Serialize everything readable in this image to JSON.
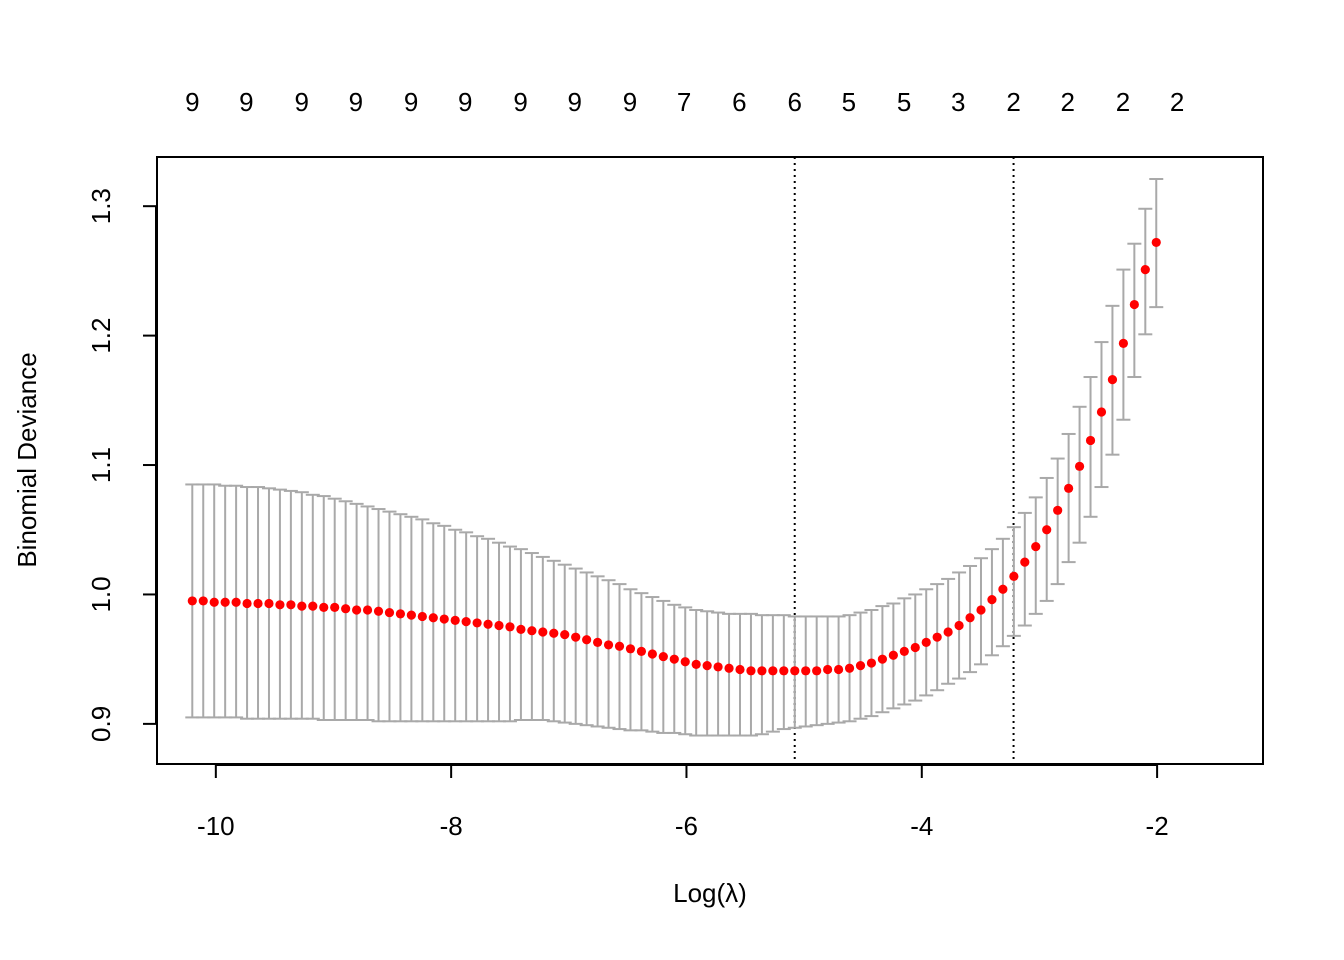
{
  "chart_data": {
    "type": "scatter",
    "xlabel": "Log(λ)",
    "ylabel": "Binomial Deviance",
    "xlim": [
      -10.5,
      -1.1
    ],
    "ylim": [
      0.869,
      1.338
    ],
    "x_ticks": [
      {
        "value": -10,
        "label": "-10"
      },
      {
        "value": -8,
        "label": "-8"
      },
      {
        "value": -6,
        "label": "-6"
      },
      {
        "value": -4,
        "label": "-4"
      },
      {
        "value": -2,
        "label": "-2"
      }
    ],
    "y_ticks": [
      {
        "value": 0.9,
        "label": "0.9"
      },
      {
        "value": 1.0,
        "label": "1.0"
      },
      {
        "value": 1.1,
        "label": "1.1"
      },
      {
        "value": 1.2,
        "label": "1.2"
      },
      {
        "value": 1.3,
        "label": "1.3"
      }
    ],
    "top_axis": {
      "x": [
        -10.2,
        -9.74,
        -9.27,
        -8.81,
        -8.34,
        -7.88,
        -7.41,
        -6.95,
        -6.48,
        -6.02,
        -5.55,
        -5.08,
        -4.62,
        -4.15,
        -3.69,
        -3.22,
        -2.76,
        -2.29,
        -1.83
      ],
      "labels": [
        "9",
        "9",
        "9",
        "9",
        "9",
        "9",
        "9",
        "9",
        "9",
        "7",
        "6",
        "6",
        "5",
        "5",
        "3",
        "2",
        "2",
        "2",
        "2"
      ]
    },
    "vlines": [
      -5.08,
      -3.22
    ],
    "series": [
      {
        "x_start": -10.2,
        "x_step": 0.0931,
        "mean": [
          0.995,
          0.995,
          0.994,
          0.994,
          0.994,
          0.993,
          0.993,
          0.993,
          0.992,
          0.992,
          0.991,
          0.991,
          0.99,
          0.99,
          0.989,
          0.988,
          0.988,
          0.987,
          0.986,
          0.985,
          0.984,
          0.983,
          0.982,
          0.981,
          0.98,
          0.979,
          0.978,
          0.977,
          0.976,
          0.975,
          0.973,
          0.972,
          0.971,
          0.97,
          0.969,
          0.967,
          0.965,
          0.963,
          0.961,
          0.96,
          0.958,
          0.956,
          0.954,
          0.952,
          0.95,
          0.948,
          0.946,
          0.945,
          0.944,
          0.943,
          0.942,
          0.941,
          0.941,
          0.941,
          0.941,
          0.941,
          0.941,
          0.941,
          0.942,
          0.942,
          0.943,
          0.945,
          0.947,
          0.95,
          0.953,
          0.956,
          0.959,
          0.963,
          0.967,
          0.971,
          0.976,
          0.982,
          0.988,
          0.996,
          1.004,
          1.014,
          1.025,
          1.037,
          1.05,
          1.065,
          1.082,
          1.099,
          1.119,
          1.141,
          1.166,
          1.194,
          1.224,
          1.251,
          1.272
        ],
        "lower": [
          0.905,
          0.905,
          0.905,
          0.905,
          0.905,
          0.904,
          0.904,
          0.904,
          0.904,
          0.904,
          0.904,
          0.904,
          0.903,
          0.903,
          0.903,
          0.903,
          0.903,
          0.902,
          0.902,
          0.902,
          0.902,
          0.902,
          0.902,
          0.902,
          0.902,
          0.902,
          0.902,
          0.902,
          0.902,
          0.902,
          0.903,
          0.903,
          0.903,
          0.902,
          0.901,
          0.9,
          0.899,
          0.898,
          0.897,
          0.896,
          0.895,
          0.895,
          0.894,
          0.893,
          0.893,
          0.892,
          0.891,
          0.891,
          0.891,
          0.891,
          0.891,
          0.891,
          0.892,
          0.894,
          0.896,
          0.897,
          0.898,
          0.899,
          0.9,
          0.901,
          0.902,
          0.904,
          0.906,
          0.909,
          0.912,
          0.915,
          0.918,
          0.922,
          0.926,
          0.931,
          0.935,
          0.94,
          0.946,
          0.953,
          0.96,
          0.968,
          0.976,
          0.985,
          0.995,
          1.008,
          1.025,
          1.04,
          1.06,
          1.083,
          1.108,
          1.135,
          1.168,
          1.201,
          1.222
        ],
        "upper": [
          1.085,
          1.085,
          1.085,
          1.084,
          1.084,
          1.083,
          1.083,
          1.082,
          1.081,
          1.08,
          1.079,
          1.077,
          1.076,
          1.074,
          1.072,
          1.07,
          1.068,
          1.066,
          1.064,
          1.062,
          1.06,
          1.058,
          1.055,
          1.053,
          1.05,
          1.048,
          1.045,
          1.043,
          1.04,
          1.037,
          1.035,
          1.032,
          1.029,
          1.026,
          1.023,
          1.02,
          1.017,
          1.014,
          1.011,
          1.008,
          1.004,
          1.001,
          0.998,
          0.995,
          0.992,
          0.99,
          0.988,
          0.987,
          0.986,
          0.985,
          0.985,
          0.985,
          0.984,
          0.984,
          0.984,
          0.983,
          0.983,
          0.983,
          0.983,
          0.983,
          0.984,
          0.986,
          0.988,
          0.991,
          0.993,
          0.997,
          1.0,
          1.004,
          1.008,
          1.012,
          1.017,
          1.022,
          1.028,
          1.035,
          1.043,
          1.052,
          1.063,
          1.075,
          1.09,
          1.105,
          1.124,
          1.145,
          1.168,
          1.195,
          1.223,
          1.251,
          1.271,
          1.298,
          1.321
        ]
      }
    ],
    "colors": {
      "points": "#ff0000",
      "error_bars": "#a9a9a9",
      "axes": "#000000"
    }
  }
}
